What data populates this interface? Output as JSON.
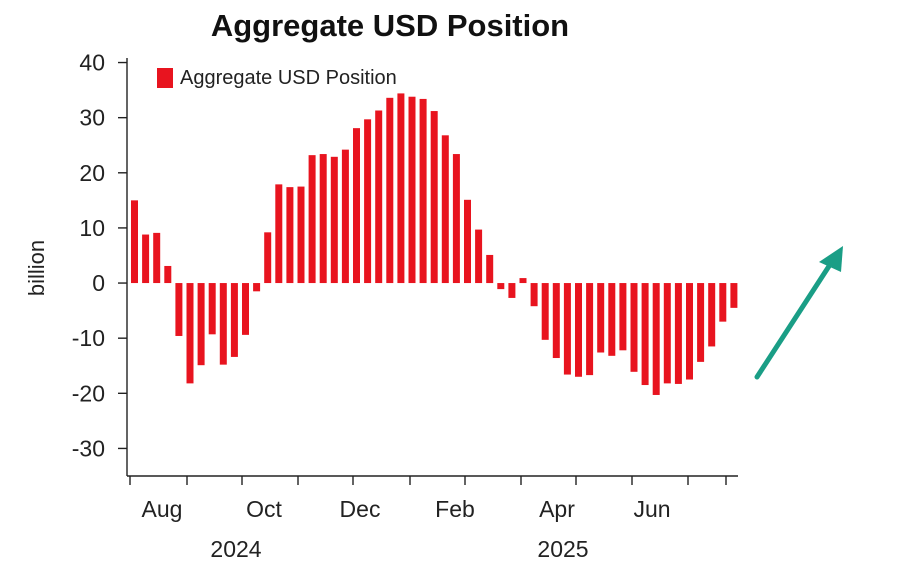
{
  "chart_data": {
    "type": "bar",
    "title": "Aggregate USD Position",
    "ylabel": "billion",
    "xlabel": "",
    "ylim": [
      -35,
      43
    ],
    "yticks": [
      40,
      30,
      20,
      10,
      0,
      -10,
      -20,
      -30
    ],
    "grid": false,
    "legend_position": "top-left",
    "series": [
      {
        "name": "Aggregate USD Position",
        "color": "#e8141f",
        "values": [
          15,
          8.8,
          9.1,
          3.1,
          -9.6,
          -18.2,
          -14.9,
          -9.3,
          -14.8,
          -13.4,
          -9.4,
          -1.5,
          9.2,
          17.9,
          17.4,
          17.5,
          23.2,
          23.4,
          22.9,
          24.2,
          28.1,
          29.7,
          31.3,
          33.6,
          34.4,
          33.8,
          33.4,
          31.2,
          26.8,
          23.4,
          15.1,
          9.7,
          5.1,
          -1.1,
          -2.7,
          0.9,
          -4.2,
          -10.3,
          -13.6,
          -16.6,
          -17,
          -16.7,
          -12.6,
          -13.2,
          -12.2,
          -16.1,
          -18.5,
          -20.3,
          -18.2,
          -18.3,
          -17.5,
          -14.3,
          -11.5,
          -7,
          -4.5
        ]
      }
    ],
    "x_month_labels": [
      "Aug",
      "Oct",
      "Dec",
      "Feb",
      "Apr",
      "Jun"
    ],
    "x_year_labels": [
      "2024",
      "2025"
    ],
    "annotation": "green-up-arrow"
  }
}
